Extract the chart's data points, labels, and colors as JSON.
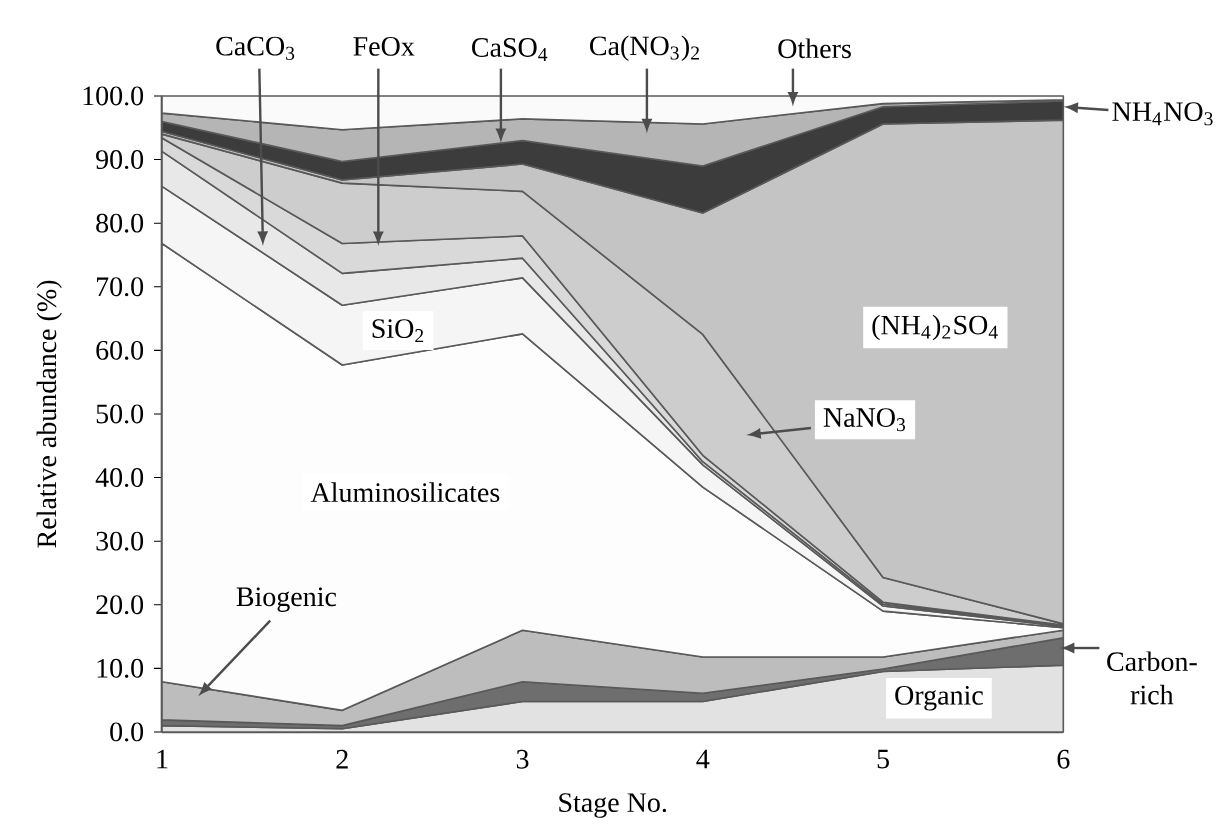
{
  "chart_data": {
    "type": "area",
    "stacked": true,
    "xlabel": "Stage No.",
    "ylabel": "Relative abundance (%)",
    "x": [
      1,
      2,
      3,
      4,
      5,
      6
    ],
    "xlim": [
      1,
      6
    ],
    "xticks": [
      1,
      2,
      3,
      4,
      5,
      6
    ],
    "ylim": [
      0,
      100
    ],
    "yticks": [
      {
        "value": 0,
        "label": "0.0"
      },
      {
        "value": 10,
        "label": "10.0"
      },
      {
        "value": 20,
        "label": "20.0"
      },
      {
        "value": 30,
        "label": "30.0"
      },
      {
        "value": 40,
        "label": "40.0"
      },
      {
        "value": 50,
        "label": "50.0"
      },
      {
        "value": 60,
        "label": "60.0"
      },
      {
        "value": 70,
        "label": "70.0"
      },
      {
        "value": 80,
        "label": "80.0"
      },
      {
        "value": 90,
        "label": "90.0"
      },
      {
        "value": 100,
        "label": "100.0"
      }
    ],
    "series": [
      {
        "color": "#e2e2e2",
        "values": [
          1.0,
          0.5,
          4.8,
          4.8,
          9.5,
          10.5
        ]
      },
      {
        "color": "#6e6e6e",
        "values": [
          0.9,
          0.5,
          3.1,
          1.3,
          0.4,
          4.3
        ]
      },
      {
        "color": "#bdbdbd",
        "values": [
          6.0,
          2.4,
          8.1,
          5.7,
          1.9,
          1.2
        ]
      },
      {
        "color": "#fdfdfd",
        "values": [
          68.9,
          54.3,
          46.6,
          26.7,
          7.2,
          0.4
        ]
      },
      {
        "color": "#f5f5f5",
        "values": [
          9.0,
          9.4,
          8.8,
          3.5,
          0.8,
          0.2
        ]
      },
      {
        "color": "#e8e8e8",
        "values": [
          5.5,
          5.0,
          3.1,
          0.5,
          0.3,
          0.1
        ]
      },
      {
        "color": "#d9d9d9",
        "values": [
          2.1,
          4.7,
          3.5,
          1.0,
          0.3,
          0.1
        ]
      },
      {
        "color": "#cdcdcd",
        "values": [
          0.6,
          9.5,
          7.0,
          19.0,
          3.9,
          0.2
        ]
      },
      {
        "color": "#c4c4c4",
        "values": [
          0.4,
          0.5,
          4.3,
          19.1,
          71.3,
          79.2
        ]
      },
      {
        "color": "#3c3c3c",
        "values": [
          1.6,
          2.9,
          3.7,
          7.4,
          2.7,
          3.0
        ]
      },
      {
        "color": "#b5b5b5",
        "values": [
          1.3,
          5.0,
          3.4,
          6.6,
          0.5,
          0.2
        ]
      },
      {
        "color": "#fafafa",
        "values": [
          2.7,
          5.3,
          3.6,
          4.4,
          1.2,
          0.6
        ]
      }
    ],
    "annotations": [
      "CaCO$_{3}$",
      "FeOx",
      "CaSO$_{4}$",
      "Ca(NO$_{3}$)$_{2}$",
      "Others",
      "NH$_{4}$NO$_{3}$",
      "(NH$_{4}$)$_{2}$SO$_{4}$",
      "SiO$_{2}$",
      "NaNO$_{3}$",
      "Aluminosilicates",
      "Biogenic",
      "Carbon-rich",
      "Organic"
    ]
  }
}
